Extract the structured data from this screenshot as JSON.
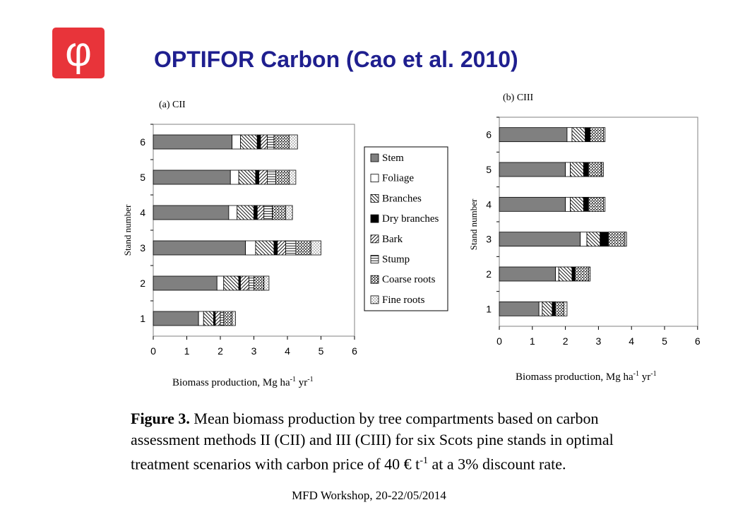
{
  "header": {
    "title": "OPTIFOR Carbon (Cao et al. 2010)",
    "logo_glyph": "φ",
    "logo_color": "#e8343a"
  },
  "legend_items": [
    "Stem",
    "Foliage",
    "Branches",
    "Dry branches",
    "Bark",
    "Stump",
    "Coarse roots",
    "Fine roots"
  ],
  "chart_data": [
    {
      "type": "bar",
      "orientation": "horizontal",
      "stacked": true,
      "title": "(a) CII",
      "xlabel": "Biomass production, Mg ha-1 yr-1",
      "ylabel": "Stand number",
      "xlim": [
        0,
        6
      ],
      "xticks": [
        "0",
        "1",
        "2",
        "3",
        "4",
        "5",
        "6"
      ],
      "categories": [
        "1",
        "2",
        "3",
        "4",
        "5",
        "6"
      ],
      "legend": "right",
      "series": [
        {
          "name": "Stem",
          "values": [
            1.35,
            1.9,
            2.75,
            2.25,
            2.3,
            2.35
          ]
        },
        {
          "name": "Foliage",
          "values": [
            0.15,
            0.2,
            0.3,
            0.25,
            0.25,
            0.25
          ]
        },
        {
          "name": "Branches",
          "values": [
            0.3,
            0.45,
            0.55,
            0.5,
            0.5,
            0.5
          ]
        },
        {
          "name": "Dry branches",
          "values": [
            0.05,
            0.05,
            0.1,
            0.1,
            0.1,
            0.1
          ]
        },
        {
          "name": "Bark",
          "values": [
            0.15,
            0.25,
            0.25,
            0.2,
            0.25,
            0.2
          ]
        },
        {
          "name": "Stump",
          "values": [
            0.1,
            0.15,
            0.3,
            0.25,
            0.25,
            0.2
          ]
        },
        {
          "name": "Coarse roots",
          "values": [
            0.25,
            0.3,
            0.45,
            0.4,
            0.4,
            0.45
          ]
        },
        {
          "name": "Fine roots",
          "values": [
            0.1,
            0.15,
            0.3,
            0.2,
            0.2,
            0.25
          ]
        }
      ]
    },
    {
      "type": "bar",
      "orientation": "horizontal",
      "stacked": true,
      "title": "(b) CIII",
      "xlabel": "Biomass production, Mg ha-1 yr-1",
      "ylabel": "Stand number",
      "xlim": [
        0,
        6
      ],
      "xticks": [
        "0",
        "1",
        "2",
        "3",
        "4",
        "5",
        "6"
      ],
      "categories": [
        "1",
        "2",
        "3",
        "4",
        "5",
        "6"
      ],
      "series": [
        {
          "name": "Stem",
          "values": [
            1.2,
            1.7,
            2.45,
            2.0,
            2.0,
            2.05
          ]
        },
        {
          "name": "Foliage",
          "values": [
            0.1,
            0.1,
            0.2,
            0.15,
            0.15,
            0.15
          ]
        },
        {
          "name": "Branches",
          "values": [
            0.3,
            0.4,
            0.4,
            0.4,
            0.4,
            0.4
          ]
        },
        {
          "name": "Dry branches",
          "values": [
            0.1,
            0.1,
            0.25,
            0.15,
            0.15,
            0.15
          ]
        },
        {
          "name": "Bark",
          "values": [
            0,
            0,
            0,
            0,
            0,
            0
          ]
        },
        {
          "name": "Stump",
          "values": [
            0,
            0,
            0,
            0,
            0,
            0
          ]
        },
        {
          "name": "Coarse roots",
          "values": [
            0.25,
            0.4,
            0.5,
            0.45,
            0.4,
            0.4
          ]
        },
        {
          "name": "Fine roots",
          "values": [
            0.1,
            0.05,
            0.05,
            0.05,
            0.05,
            0.05
          ]
        }
      ]
    }
  ],
  "caption": {
    "label": "Figure 3.",
    "line1": " Mean biomass production by tree compartments based on carbon",
    "line2": "assessment methods II (CII) and III (CIII) for six Scots pine stands in optimal",
    "line3a": "treatment scenarios with carbon price of 40 € t",
    "line3sup": "-1",
    "line3b": " at a 3% discount rate."
  },
  "footer": "MFD Workshop, 20-22/05/2014"
}
